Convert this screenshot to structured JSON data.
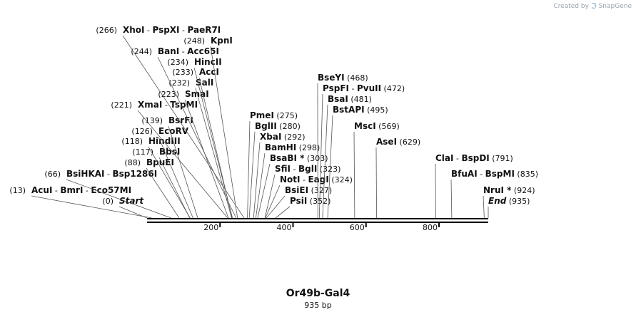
{
  "brand": {
    "prefix": "Created by",
    "name": "SnapGene",
    "logo_icon": "snapgene-logo-icon"
  },
  "map": {
    "name": "Or49b-Gal4",
    "length_label": "935 bp",
    "length": 935,
    "ticks": [
      200,
      400,
      600,
      800
    ],
    "features": [
      {
        "name": "AcuI",
        "partners": [
          "BmrI",
          "Eco57MI"
        ],
        "pos": 13
      },
      {
        "name": "Start",
        "pos": 0,
        "italic": true
      },
      {
        "name": "BsiHKAI",
        "partners": [
          "Bsp1286I"
        ],
        "pos": 66
      },
      {
        "name": "BpuEI",
        "pos": 88
      },
      {
        "name": "BbsI",
        "pos": 117
      },
      {
        "name": "HindIII",
        "pos": 118
      },
      {
        "name": "EcoRV",
        "pos": 126
      },
      {
        "name": "BsrFI",
        "pos": 139
      },
      {
        "name": "XmaI",
        "partners": [
          "TspMI"
        ],
        "pos": 221
      },
      {
        "name": "SmaI",
        "pos": 223
      },
      {
        "name": "SalI",
        "pos": 232
      },
      {
        "name": "AccI",
        "pos": 233
      },
      {
        "name": "HincII",
        "pos": 234
      },
      {
        "name": "BanI",
        "partners": [
          "Acc65I"
        ],
        "pos": 244
      },
      {
        "name": "KpnI",
        "pos": 248
      },
      {
        "name": "XhoI",
        "partners": [
          "PspXI",
          "PaeR7I"
        ],
        "pos": 266
      },
      {
        "name": "PmeI",
        "pos": 275
      },
      {
        "name": "BglII",
        "pos": 280
      },
      {
        "name": "XbaI",
        "pos": 292
      },
      {
        "name": "BamHI",
        "pos": 298
      },
      {
        "name": "BsaBI *",
        "pos": 303
      },
      {
        "name": "SfiI",
        "partners": [
          "BglI"
        ],
        "pos": 323
      },
      {
        "name": "NotI",
        "partners": [
          "EagI"
        ],
        "pos": 324
      },
      {
        "name": "BsiEI",
        "pos": 327
      },
      {
        "name": "PsiI",
        "pos": 352
      },
      {
        "name": "BseYI",
        "pos": 468
      },
      {
        "name": "PspFI",
        "partners": [
          "PvuII"
        ],
        "pos": 472
      },
      {
        "name": "BsaI",
        "pos": 481
      },
      {
        "name": "BstAPI",
        "pos": 495
      },
      {
        "name": "MscI",
        "pos": 569
      },
      {
        "name": "AseI",
        "pos": 629
      },
      {
        "name": "ClaI",
        "partners": [
          "BspDI"
        ],
        "pos": 791
      },
      {
        "name": "BfuAI",
        "partners": [
          "BspMI"
        ],
        "pos": 835
      },
      {
        "name": "NruI *",
        "pos": 924
      },
      {
        "name": "End",
        "pos": 935,
        "italic": true
      }
    ]
  }
}
